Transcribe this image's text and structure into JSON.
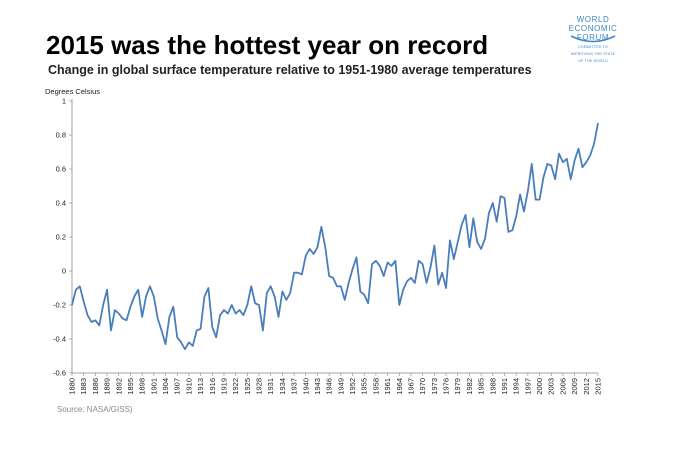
{
  "header": {
    "title": "2015 was the hottest year on record",
    "subtitle": "Change in global surface temperature relative to 1951-1980 average temperatures"
  },
  "logo": {
    "line1": "WORLD",
    "line2": "ECONOMIC",
    "line3": "FORUM",
    "tag1": "COMMITTED TO",
    "tag2": "IMPROVING THE STATE",
    "tag3": "OF THE WORLD",
    "color": "#3f86c8"
  },
  "footer": {
    "source": "Source:  NASA/GISS)"
  },
  "chart_data": {
    "type": "line",
    "ylabel": "Degrees Celsius",
    "xlabel": "",
    "ylim": [
      -0.6,
      1
    ],
    "yticks": [
      "-0.6",
      "-0.4",
      "-0.2",
      "0",
      "0.2",
      "0.4",
      "0.6",
      "0.8",
      "1"
    ],
    "xlim": [
      1880,
      2015
    ],
    "xtick_start": 1880,
    "xtick_step": 3,
    "grid": false,
    "line_color": "#4a7ebb",
    "series": [
      {
        "name": "",
        "x_start": 1880,
        "values": [
          -0.2,
          -0.11,
          -0.09,
          -0.18,
          -0.26,
          -0.3,
          -0.29,
          -0.32,
          -0.2,
          -0.11,
          -0.35,
          -0.23,
          -0.25,
          -0.28,
          -0.29,
          -0.21,
          -0.15,
          -0.11,
          -0.27,
          -0.15,
          -0.09,
          -0.15,
          -0.28,
          -0.35,
          -0.43,
          -0.27,
          -0.21,
          -0.39,
          -0.42,
          -0.46,
          -0.42,
          -0.44,
          -0.35,
          -0.34,
          -0.15,
          -0.1,
          -0.33,
          -0.39,
          -0.26,
          -0.23,
          -0.25,
          -0.2,
          -0.25,
          -0.23,
          -0.26,
          -0.2,
          -0.09,
          -0.19,
          -0.2,
          -0.35,
          -0.13,
          -0.09,
          -0.15,
          -0.27,
          -0.12,
          -0.17,
          -0.13,
          -0.01,
          -0.01,
          -0.02,
          0.09,
          0.13,
          0.1,
          0.14,
          0.26,
          0.14,
          -0.03,
          -0.04,
          -0.09,
          -0.09,
          -0.17,
          -0.07,
          0.01,
          0.08,
          -0.12,
          -0.14,
          -0.19,
          0.04,
          0.06,
          0.03,
          -0.03,
          0.05,
          0.03,
          0.06,
          -0.2,
          -0.11,
          -0.06,
          -0.04,
          -0.07,
          0.06,
          0.04,
          -0.07,
          0.02,
          0.15,
          -0.08,
          -0.01,
          -0.1,
          0.18,
          0.07,
          0.17,
          0.27,
          0.33,
          0.14,
          0.31,
          0.17,
          0.13,
          0.19,
          0.34,
          0.4,
          0.29,
          0.44,
          0.43,
          0.23,
          0.24,
          0.32,
          0.45,
          0.35,
          0.47,
          0.63,
          0.42,
          0.42,
          0.55,
          0.63,
          0.62,
          0.54,
          0.69,
          0.64,
          0.66,
          0.54,
          0.65,
          0.72,
          0.61,
          0.64,
          0.68,
          0.75,
          0.87
        ]
      }
    ]
  }
}
